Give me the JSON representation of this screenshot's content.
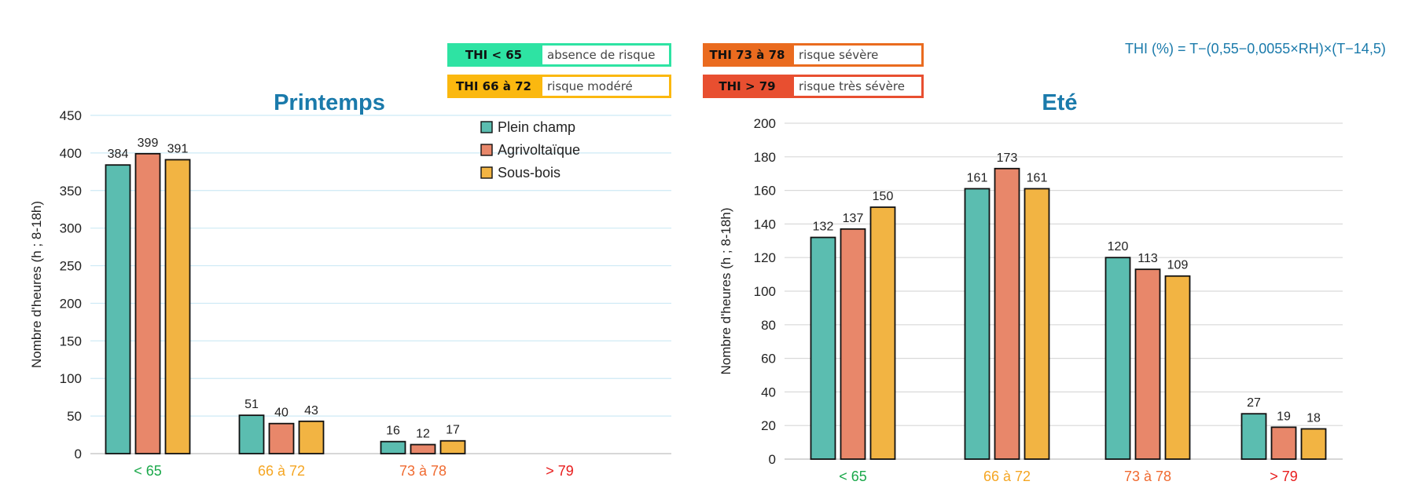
{
  "legend_boxes": [
    {
      "key": "THI < 65",
      "label": "absence de risque",
      "color": "#2ee3a3"
    },
    {
      "key": "THI 66 à 72",
      "label": "risque modéré",
      "color": "#fbb80f"
    },
    {
      "key": "THI 73 à 78",
      "label": "risque sévère",
      "color": "#ea6b1f"
    },
    {
      "key": "THI > 79",
      "label": "risque très sévère",
      "color": "#e84f30"
    }
  ],
  "formula": "THI (%) = T−(0,55−0,0055×RH)×(T−14,5)",
  "chart_data": [
    {
      "type": "bar",
      "title": "Printemps",
      "ylabel": "Nombre d'heures (h ; 8-18h)",
      "ylim": [
        0,
        450
      ],
      "yticks": [
        0,
        50,
        100,
        150,
        200,
        250,
        300,
        350,
        400,
        450
      ],
      "categories": [
        "< 65",
        "66 à 72",
        "73 à 78",
        "> 79"
      ],
      "category_colors": [
        "#1aa84a",
        "#f5a623",
        "#f06a30",
        "#e81c1c"
      ],
      "series": [
        {
          "name": "Plein champ",
          "color": "#5bbdb0",
          "values": [
            384,
            51,
            16,
            null
          ]
        },
        {
          "name": "Agrivoltaïque",
          "color": "#e8876a",
          "values": [
            399,
            40,
            12,
            null
          ]
        },
        {
          "name": "Sous-bois",
          "color": "#f2b443",
          "values": [
            391,
            43,
            17,
            null
          ]
        }
      ],
      "legend": "top-right",
      "grid": true
    },
    {
      "type": "bar",
      "title": "Eté",
      "ylabel": "Nombre d'heures (h ; 8-18h)",
      "ylim": [
        0,
        200
      ],
      "yticks": [
        0,
        20,
        40,
        60,
        80,
        100,
        120,
        140,
        160,
        180,
        200
      ],
      "categories": [
        "< 65",
        "66 à 72",
        "73 à 78",
        "> 79"
      ],
      "category_colors": [
        "#1aa84a",
        "#f5a623",
        "#f06a30",
        "#e81c1c"
      ],
      "series": [
        {
          "name": "Plein champ",
          "color": "#5bbdb0",
          "values": [
            132,
            161,
            120,
            27
          ]
        },
        {
          "name": "Agrivoltaïque",
          "color": "#e8876a",
          "values": [
            137,
            173,
            113,
            19
          ]
        },
        {
          "name": "Sous-bois",
          "color": "#f2b443",
          "values": [
            150,
            161,
            109,
            18
          ]
        }
      ],
      "grid": true
    }
  ]
}
